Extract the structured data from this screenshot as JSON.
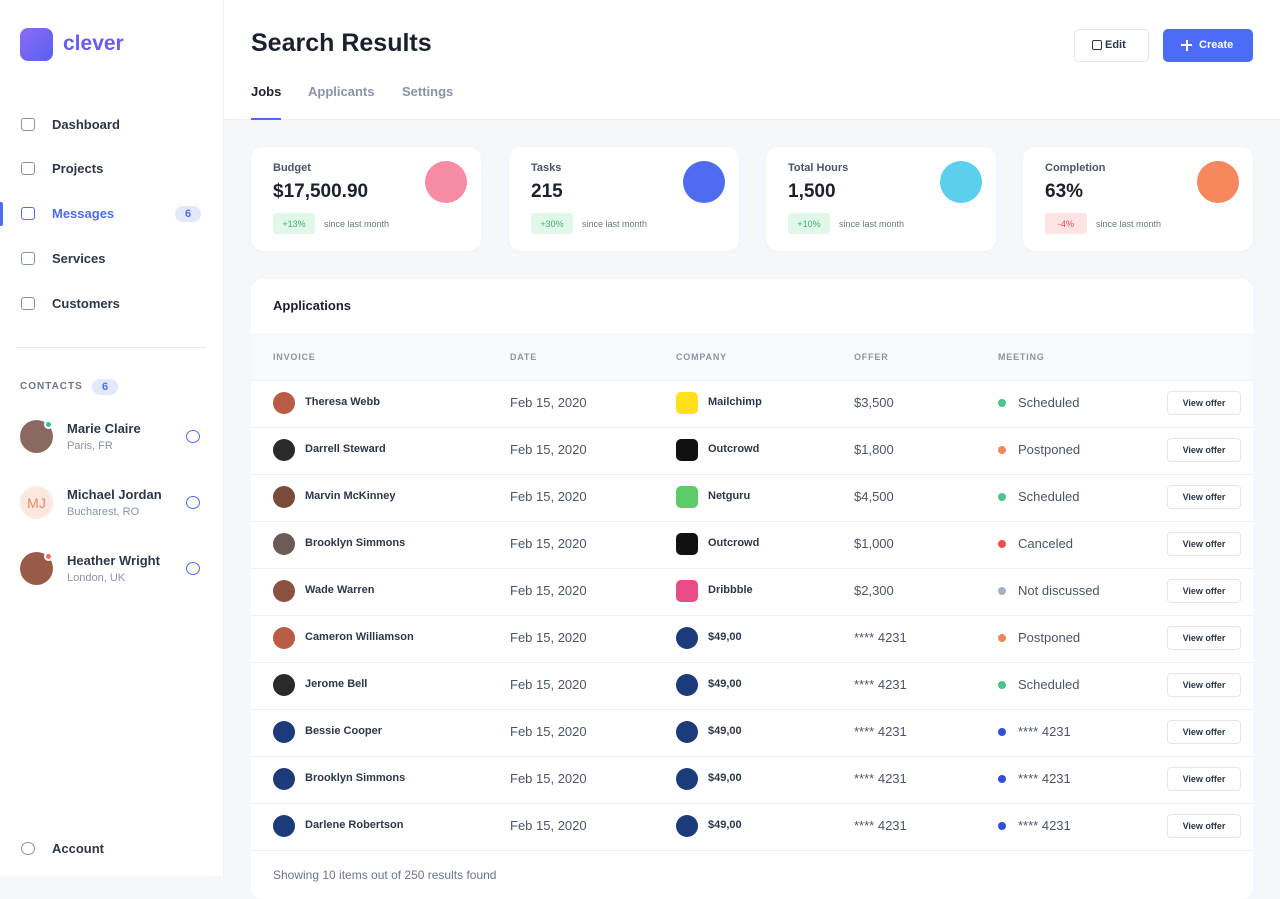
{
  "brand": "clever",
  "nav": [
    {
      "label": "Dashboard"
    },
    {
      "label": "Projects"
    },
    {
      "label": "Messages",
      "badge": 6,
      "active": true
    },
    {
      "label": "Services"
    },
    {
      "label": "Customers"
    }
  ],
  "contacts": {
    "title": "CONTACTS",
    "count": 6,
    "items": [
      {
        "name": "Marie Claire",
        "location": "Paris, FR",
        "avatar_color": "#8a6a60",
        "status_color": "#34c38f"
      },
      {
        "name": "Michael Jordan",
        "location": "Bucharest, RO",
        "initials": "MJ",
        "avatar_color": "#fde8e0"
      },
      {
        "name": "Heather Wright",
        "location": "London, UK",
        "avatar_color": "#9a5a4a",
        "status_color": "#f46a6a"
      }
    ]
  },
  "account": "Account",
  "header": {
    "title": "Search Results",
    "tabs": [
      "Jobs",
      "Applicants",
      "Settings"
    ],
    "active_tab": 0,
    "edit": "Edit",
    "create": "Create"
  },
  "stats": [
    {
      "label": "Budget",
      "value": "$17,500.90",
      "change": "+13%",
      "note": "since last month",
      "icon_color": "#f58ca4"
    },
    {
      "label": "Tasks",
      "value": "215",
      "change": "+30%",
      "note": "since last month",
      "icon_color": "#4f6cf0"
    },
    {
      "label": "Total Hours",
      "value": "1,500",
      "change": "+10%",
      "note": "since last month",
      "icon_color": "#5bd0ee"
    },
    {
      "label": "Completion",
      "value": "63%",
      "change": "-4%",
      "note": "since last month",
      "icon_color": "#f5885c"
    }
  ],
  "table": {
    "title": "Applications",
    "columns": [
      "INVOICE",
      "DATE",
      "COMPANY",
      "OFFER",
      "MEETING"
    ],
    "action": "View offer",
    "rows": [
      {
        "invoice": "Theresa Webb",
        "date": "Feb 15, 2020",
        "company": "Mailchimp",
        "offer": "$3,500",
        "meeting": "Scheduled",
        "status_color": "#4cc38a",
        "logo_color": "#ffe01b",
        "avatar_color": "#b85c45"
      },
      {
        "invoice": "Darrell Steward",
        "date": "Feb 15, 2020",
        "company": "Outcrowd",
        "offer": "$1,800",
        "meeting": "Postponed",
        "status_color": "#f0875a",
        "logo_color": "#111111",
        "avatar_color": "#2a2a2a"
      },
      {
        "invoice": "Marvin McKinney",
        "date": "Feb 15, 2020",
        "company": "Netguru",
        "offer": "$4,500",
        "meeting": "Scheduled",
        "status_color": "#4cc38a",
        "logo_color": "#5ecb6a",
        "avatar_color": "#7a4a3a"
      },
      {
        "invoice": "Brooklyn Simmons",
        "date": "Feb 15, 2020",
        "company": "Outcrowd",
        "offer": "$1,000",
        "meeting": "Canceled",
        "status_color": "#ef4e4e",
        "logo_color": "#111111",
        "avatar_color": "#6b5a55"
      },
      {
        "invoice": "Wade Warren",
        "date": "Feb 15, 2020",
        "company": "Dribbble",
        "offer": "$2,300",
        "meeting": "Not discussed",
        "status_color": "#a3b1c6",
        "logo_color": "#ea4c89",
        "avatar_color": "#8a5040"
      },
      {
        "invoice": "Cameron Williamson",
        "date": "Feb 15, 2020",
        "company": "$49,00",
        "offer": "**** 4231",
        "meeting": "Postponed",
        "status_color": "#f0875a",
        "logo_color": "#1d3a7a",
        "avatar_color": "#b85c45"
      },
      {
        "invoice": "Jerome Bell",
        "date": "Feb 15, 2020",
        "company": "$49,00",
        "offer": "**** 4231",
        "meeting": "Scheduled",
        "status_color": "#4cc38a",
        "logo_color": "#1d3a7a",
        "avatar_color": "#2a2a2a"
      },
      {
        "invoice": "Bessie Cooper",
        "date": "Feb 15, 2020",
        "company": "$49,00",
        "offer": "**** 4231",
        "meeting": "**** 4231",
        "status_color": "#2f4fd8",
        "logo_color": "#1d3a7a",
        "avatar_color": "#1d3a7a"
      },
      {
        "invoice": "Brooklyn Simmons",
        "date": "Feb 15, 2020",
        "company": "$49,00",
        "offer": "**** 4231",
        "meeting": "**** 4231",
        "status_color": "#2f4fd8",
        "logo_color": "#1d3a7a",
        "avatar_color": "#1d3a7a"
      },
      {
        "invoice": "Darlene Robertson",
        "date": "Feb 15, 2020",
        "company": "$49,00",
        "offer": "**** 4231",
        "meeting": "**** 4231",
        "status_color": "#2f4fd8",
        "logo_color": "#1d3a7a",
        "avatar_color": "#1d3a7a"
      }
    ],
    "footer": "Showing 10 items out of 250 results found"
  }
}
